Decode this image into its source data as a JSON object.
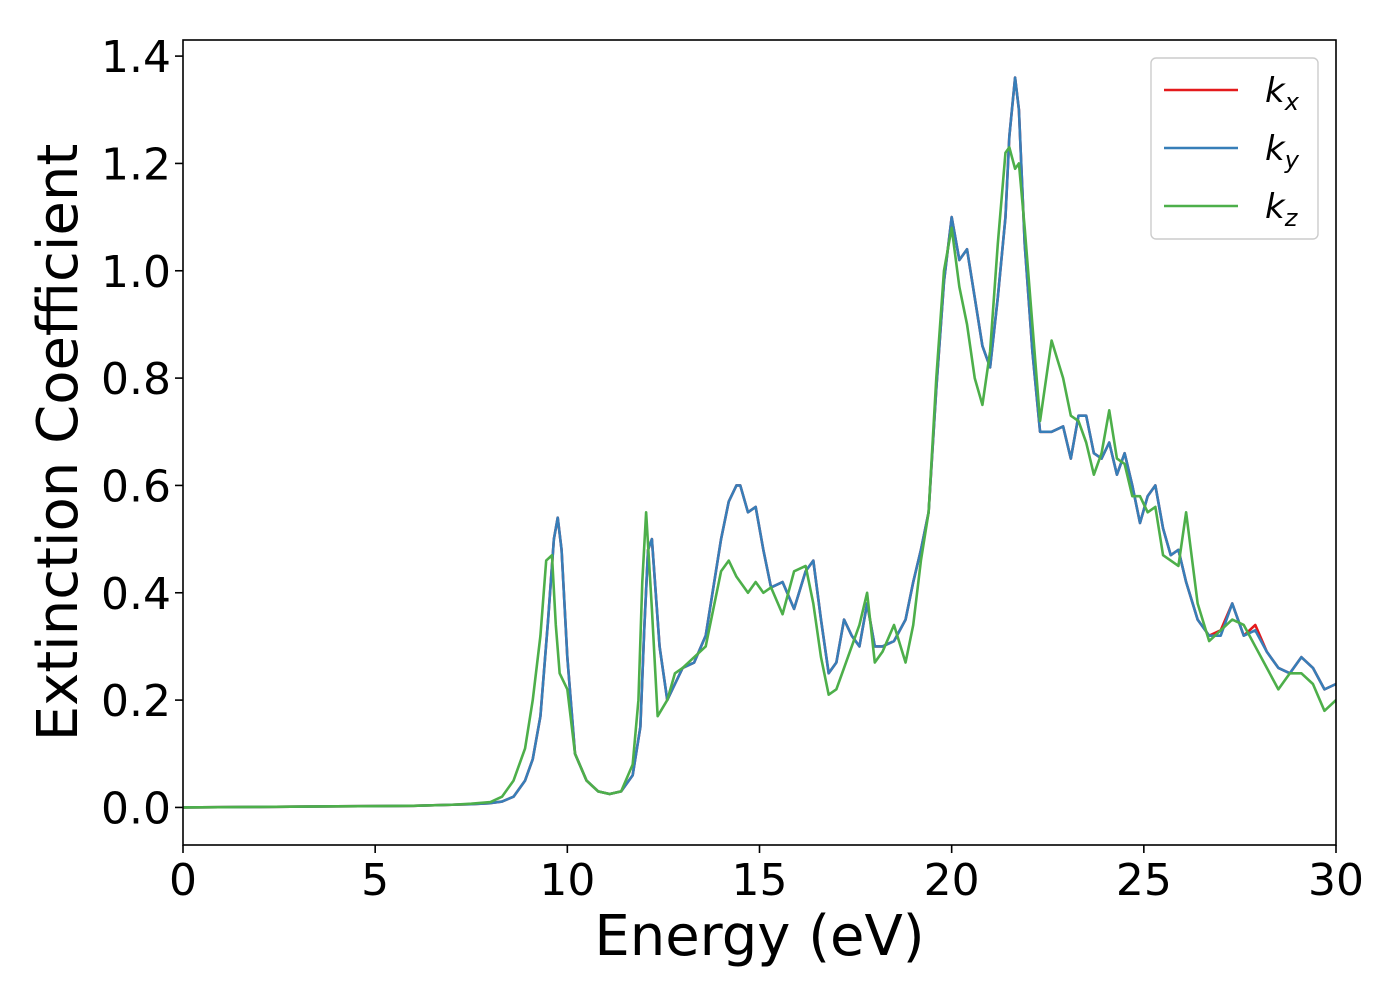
{
  "chart_data": {
    "type": "line",
    "title": "",
    "xlabel": "Energy (eV)",
    "ylabel": "Extinction Coefficient",
    "xlim": [
      0,
      30
    ],
    "ylim": [
      -0.07,
      1.43
    ],
    "xticks": [
      0,
      5,
      10,
      15,
      20,
      25,
      30
    ],
    "xtick_labels": [
      "0",
      "5",
      "10",
      "15",
      "20",
      "25",
      "30"
    ],
    "yticks": [
      0.0,
      0.2,
      0.4,
      0.6,
      0.8,
      1.0,
      1.2,
      1.4
    ],
    "ytick_labels": [
      "0.0",
      "0.2",
      "0.4",
      "0.6",
      "0.8",
      "1.0",
      "1.2",
      "1.4"
    ],
    "grid": false,
    "legend_position": "top-right",
    "series": [
      {
        "name": "k_x",
        "legend_base": "k",
        "legend_sub": "x",
        "color": "#e41a1c",
        "x": [
          0,
          2,
          4,
          6,
          7,
          7.5,
          8,
          8.3,
          8.6,
          8.9,
          9.1,
          9.3,
          9.5,
          9.65,
          9.75,
          9.85,
          10.0,
          10.2,
          10.5,
          10.8,
          11.1,
          11.4,
          11.7,
          11.9,
          12.0,
          12.1,
          12.2,
          12.4,
          12.6,
          12.8,
          13.0,
          13.3,
          13.6,
          14.0,
          14.2,
          14.4,
          14.5,
          14.7,
          14.9,
          15.1,
          15.3,
          15.6,
          15.9,
          16.2,
          16.4,
          16.6,
          16.8,
          17.0,
          17.2,
          17.4,
          17.6,
          17.8,
          18.0,
          18.2,
          18.5,
          18.8,
          19.0,
          19.2,
          19.4,
          19.6,
          19.8,
          20.0,
          20.2,
          20.4,
          20.6,
          20.8,
          21.0,
          21.2,
          21.4,
          21.5,
          21.65,
          21.75,
          21.9,
          22.1,
          22.3,
          22.6,
          22.9,
          23.1,
          23.3,
          23.5,
          23.7,
          23.9,
          24.1,
          24.3,
          24.5,
          24.7,
          24.9,
          25.1,
          25.3,
          25.5,
          25.7,
          25.9,
          26.1,
          26.4,
          26.7,
          27.0,
          27.3,
          27.6,
          27.9,
          28.2,
          28.5,
          28.8,
          29.1,
          29.4,
          29.7,
          30.0
        ],
        "y": [
          0.0,
          0.001,
          0.002,
          0.003,
          0.005,
          0.006,
          0.008,
          0.011,
          0.02,
          0.05,
          0.09,
          0.17,
          0.35,
          0.5,
          0.54,
          0.48,
          0.28,
          0.1,
          0.05,
          0.03,
          0.025,
          0.03,
          0.06,
          0.15,
          0.33,
          0.48,
          0.5,
          0.3,
          0.2,
          0.23,
          0.26,
          0.27,
          0.32,
          0.5,
          0.57,
          0.6,
          0.6,
          0.55,
          0.56,
          0.48,
          0.41,
          0.42,
          0.37,
          0.44,
          0.46,
          0.35,
          0.25,
          0.27,
          0.35,
          0.32,
          0.3,
          0.38,
          0.3,
          0.3,
          0.31,
          0.35,
          0.42,
          0.48,
          0.55,
          0.78,
          0.98,
          1.1,
          1.02,
          1.04,
          0.95,
          0.86,
          0.82,
          0.95,
          1.1,
          1.25,
          1.36,
          1.3,
          1.05,
          0.85,
          0.7,
          0.7,
          0.71,
          0.65,
          0.73,
          0.73,
          0.66,
          0.65,
          0.68,
          0.62,
          0.66,
          0.6,
          0.53,
          0.58,
          0.6,
          0.52,
          0.47,
          0.48,
          0.42,
          0.35,
          0.32,
          0.33,
          0.38,
          0.32,
          0.34,
          0.29,
          0.26,
          0.25,
          0.28,
          0.26,
          0.22,
          0.23
        ]
      },
      {
        "name": "k_y",
        "legend_base": "k",
        "legend_sub": "y",
        "color": "#377eb8",
        "x": [
          0,
          2,
          4,
          6,
          7,
          7.5,
          8,
          8.3,
          8.6,
          8.9,
          9.1,
          9.3,
          9.5,
          9.65,
          9.75,
          9.85,
          10.0,
          10.2,
          10.5,
          10.8,
          11.1,
          11.4,
          11.7,
          11.9,
          12.0,
          12.1,
          12.2,
          12.4,
          12.6,
          12.8,
          13.0,
          13.3,
          13.6,
          14.0,
          14.2,
          14.4,
          14.5,
          14.7,
          14.9,
          15.1,
          15.3,
          15.6,
          15.9,
          16.2,
          16.4,
          16.6,
          16.8,
          17.0,
          17.2,
          17.4,
          17.6,
          17.8,
          18.0,
          18.2,
          18.5,
          18.8,
          19.0,
          19.2,
          19.4,
          19.6,
          19.8,
          20.0,
          20.2,
          20.4,
          20.6,
          20.8,
          21.0,
          21.2,
          21.4,
          21.5,
          21.65,
          21.75,
          21.9,
          22.1,
          22.3,
          22.6,
          22.9,
          23.1,
          23.3,
          23.5,
          23.7,
          23.9,
          24.1,
          24.3,
          24.5,
          24.7,
          24.9,
          25.1,
          25.3,
          25.5,
          25.7,
          25.9,
          26.1,
          26.4,
          26.7,
          27.0,
          27.3,
          27.6,
          27.9,
          28.2,
          28.5,
          28.8,
          29.1,
          29.4,
          29.7,
          30.0
        ],
        "y": [
          0.0,
          0.001,
          0.002,
          0.003,
          0.005,
          0.006,
          0.008,
          0.011,
          0.02,
          0.05,
          0.09,
          0.17,
          0.35,
          0.5,
          0.54,
          0.48,
          0.28,
          0.1,
          0.05,
          0.03,
          0.025,
          0.03,
          0.06,
          0.15,
          0.33,
          0.48,
          0.5,
          0.3,
          0.2,
          0.23,
          0.26,
          0.27,
          0.32,
          0.5,
          0.57,
          0.6,
          0.6,
          0.55,
          0.56,
          0.48,
          0.41,
          0.42,
          0.37,
          0.44,
          0.46,
          0.35,
          0.25,
          0.27,
          0.35,
          0.32,
          0.3,
          0.38,
          0.3,
          0.3,
          0.31,
          0.35,
          0.42,
          0.48,
          0.55,
          0.78,
          0.98,
          1.1,
          1.02,
          1.04,
          0.95,
          0.86,
          0.82,
          0.95,
          1.1,
          1.25,
          1.36,
          1.3,
          1.05,
          0.85,
          0.7,
          0.7,
          0.71,
          0.65,
          0.73,
          0.73,
          0.66,
          0.65,
          0.68,
          0.62,
          0.66,
          0.6,
          0.53,
          0.58,
          0.6,
          0.52,
          0.47,
          0.48,
          0.42,
          0.35,
          0.32,
          0.32,
          0.38,
          0.32,
          0.33,
          0.29,
          0.26,
          0.25,
          0.28,
          0.26,
          0.22,
          0.23
        ]
      },
      {
        "name": "k_z",
        "legend_base": "k",
        "legend_sub": "z",
        "color": "#4daf4a",
        "x": [
          0,
          2,
          4,
          6,
          7,
          7.5,
          8,
          8.3,
          8.6,
          8.9,
          9.1,
          9.3,
          9.45,
          9.6,
          9.7,
          9.8,
          10.0,
          10.2,
          10.5,
          10.8,
          11.1,
          11.4,
          11.7,
          11.85,
          11.95,
          12.05,
          12.2,
          12.35,
          12.6,
          12.8,
          13.0,
          13.3,
          13.6,
          14.0,
          14.2,
          14.4,
          14.5,
          14.7,
          14.9,
          15.1,
          15.3,
          15.6,
          15.9,
          16.2,
          16.4,
          16.6,
          16.8,
          17.0,
          17.2,
          17.4,
          17.6,
          17.8,
          18.0,
          18.2,
          18.5,
          18.8,
          19.0,
          19.2,
          19.4,
          19.6,
          19.8,
          20.0,
          20.2,
          20.4,
          20.6,
          20.8,
          21.0,
          21.2,
          21.4,
          21.5,
          21.65,
          21.75,
          21.9,
          22.1,
          22.3,
          22.6,
          22.9,
          23.1,
          23.3,
          23.5,
          23.7,
          23.9,
          24.1,
          24.3,
          24.5,
          24.7,
          24.9,
          25.1,
          25.3,
          25.5,
          25.7,
          25.9,
          26.1,
          26.4,
          26.7,
          27.0,
          27.3,
          27.6,
          27.9,
          28.2,
          28.5,
          28.8,
          29.1,
          29.4,
          29.7,
          30.0
        ],
        "y": [
          0.0,
          0.001,
          0.002,
          0.003,
          0.005,
          0.007,
          0.01,
          0.02,
          0.05,
          0.11,
          0.2,
          0.32,
          0.46,
          0.47,
          0.34,
          0.25,
          0.22,
          0.1,
          0.05,
          0.03,
          0.025,
          0.03,
          0.08,
          0.2,
          0.42,
          0.55,
          0.37,
          0.17,
          0.2,
          0.25,
          0.26,
          0.28,
          0.3,
          0.44,
          0.46,
          0.43,
          0.42,
          0.4,
          0.42,
          0.4,
          0.41,
          0.36,
          0.44,
          0.45,
          0.38,
          0.28,
          0.21,
          0.22,
          0.26,
          0.3,
          0.34,
          0.4,
          0.27,
          0.29,
          0.34,
          0.27,
          0.34,
          0.46,
          0.55,
          0.8,
          1.0,
          1.08,
          0.97,
          0.9,
          0.8,
          0.75,
          0.85,
          1.05,
          1.22,
          1.23,
          1.19,
          1.2,
          1.08,
          0.9,
          0.72,
          0.87,
          0.8,
          0.73,
          0.72,
          0.68,
          0.62,
          0.66,
          0.74,
          0.65,
          0.64,
          0.58,
          0.58,
          0.55,
          0.56,
          0.47,
          0.46,
          0.45,
          0.55,
          0.38,
          0.31,
          0.33,
          0.35,
          0.34,
          0.3,
          0.26,
          0.22,
          0.25,
          0.25,
          0.23,
          0.18,
          0.2
        ]
      }
    ]
  }
}
